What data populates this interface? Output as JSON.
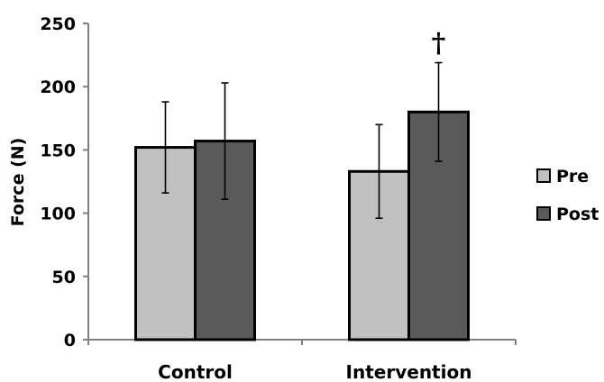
{
  "chart_data": {
    "type": "bar",
    "title": "",
    "xlabel": "",
    "ylabel": "Force (N)",
    "ylim": [
      0,
      250
    ],
    "yticks": [
      0,
      50,
      100,
      150,
      200,
      250
    ],
    "categories": [
      "Control",
      "Intervention"
    ],
    "series": [
      {
        "name": "Pre",
        "color": "#c0c0c0",
        "values": [
          152,
          133
        ],
        "errors": [
          36,
          37
        ]
      },
      {
        "name": "Post",
        "color": "#595959",
        "values": [
          157,
          180
        ],
        "errors": [
          46,
          39
        ]
      }
    ],
    "legend_position": "right",
    "grid": false,
    "annotations": [
      {
        "text": "†",
        "category": "Intervention",
        "series": "Post"
      }
    ]
  }
}
